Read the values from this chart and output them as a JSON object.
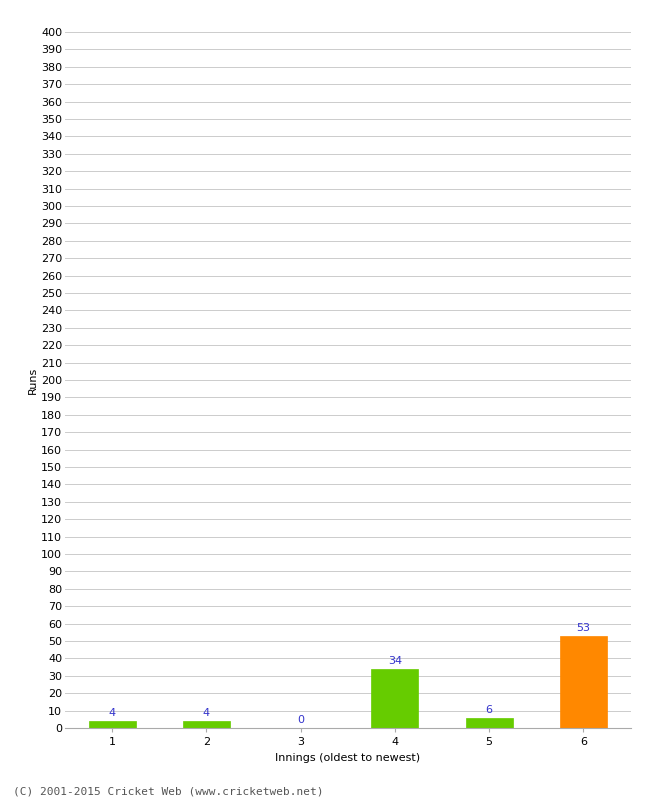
{
  "categories": [
    1,
    2,
    3,
    4,
    5,
    6
  ],
  "values": [
    4,
    4,
    0,
    34,
    6,
    53
  ],
  "bar_colors": [
    "#66cc00",
    "#66cc00",
    "#66cc00",
    "#66cc00",
    "#66cc00",
    "#ff8800"
  ],
  "ylabel": "Runs",
  "xlabel": "Innings (oldest to newest)",
  "ylim": [
    0,
    400
  ],
  "yticks": [
    0,
    10,
    20,
    30,
    40,
    50,
    60,
    70,
    80,
    90,
    100,
    110,
    120,
    130,
    140,
    150,
    160,
    170,
    180,
    190,
    200,
    210,
    220,
    230,
    240,
    250,
    260,
    270,
    280,
    290,
    300,
    310,
    320,
    330,
    340,
    350,
    360,
    370,
    380,
    390,
    400
  ],
  "label_color": "#3333cc",
  "label_fontsize": 8,
  "axis_label_fontsize": 8,
  "tick_fontsize": 8,
  "footer": "(C) 2001-2015 Cricket Web (www.cricketweb.net)",
  "footer_fontsize": 8,
  "background_color": "#ffffff",
  "grid_color": "#cccccc",
  "bar_width": 0.5
}
